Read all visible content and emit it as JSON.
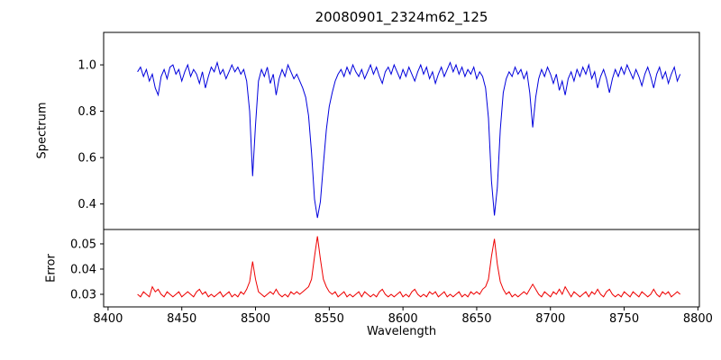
{
  "chart_data": {
    "type": "line",
    "title": "20080901_2324m62_125",
    "xlabel": "Wavelength",
    "grid": false,
    "legend": "none",
    "x_start": 8420,
    "x_step": 2,
    "n_points": 185,
    "xlim": [
      8397,
      8801
    ],
    "xticks": [
      "8400",
      "8450",
      "8500",
      "8550",
      "8600",
      "8650",
      "8700",
      "8750",
      "8800"
    ],
    "panels": [
      {
        "name": "spectrum",
        "ylabel": "Spectrum",
        "color": "#0000dd",
        "ylim": [
          0.29,
          1.14
        ],
        "yticks": [
          "0.4",
          "0.6",
          "0.8",
          "1.0"
        ],
        "absorption_line_centers": [
          8498,
          8542,
          8662
        ],
        "values": [
          0.97,
          0.99,
          0.95,
          0.98,
          0.93,
          0.96,
          0.9,
          0.87,
          0.95,
          0.98,
          0.94,
          0.99,
          1.0,
          0.96,
          0.98,
          0.93,
          0.97,
          1.0,
          0.95,
          0.98,
          0.96,
          0.92,
          0.97,
          0.9,
          0.95,
          0.99,
          0.97,
          1.01,
          0.96,
          0.98,
          0.94,
          0.97,
          1.0,
          0.97,
          0.99,
          0.96,
          0.98,
          0.93,
          0.8,
          0.52,
          0.74,
          0.93,
          0.98,
          0.95,
          0.99,
          0.92,
          0.96,
          0.87,
          0.94,
          0.98,
          0.95,
          1.0,
          0.97,
          0.94,
          0.96,
          0.93,
          0.9,
          0.86,
          0.78,
          0.62,
          0.42,
          0.34,
          0.41,
          0.57,
          0.72,
          0.82,
          0.88,
          0.93,
          0.96,
          0.98,
          0.95,
          0.99,
          0.96,
          1.0,
          0.97,
          0.95,
          0.98,
          0.94,
          0.97,
          1.0,
          0.96,
          0.99,
          0.95,
          0.92,
          0.97,
          0.99,
          0.96,
          1.0,
          0.97,
          0.94,
          0.98,
          0.95,
          0.99,
          0.96,
          0.93,
          0.97,
          1.0,
          0.96,
          0.99,
          0.94,
          0.97,
          0.92,
          0.96,
          0.99,
          0.95,
          0.98,
          1.01,
          0.97,
          1.0,
          0.96,
          0.99,
          0.95,
          0.98,
          0.96,
          0.99,
          0.94,
          0.97,
          0.95,
          0.9,
          0.77,
          0.5,
          0.35,
          0.47,
          0.72,
          0.88,
          0.94,
          0.97,
          0.95,
          0.99,
          0.96,
          0.98,
          0.94,
          0.97,
          0.88,
          0.73,
          0.86,
          0.94,
          0.98,
          0.95,
          0.99,
          0.96,
          0.92,
          0.96,
          0.89,
          0.93,
          0.87,
          0.94,
          0.97,
          0.93,
          0.98,
          0.95,
          0.99,
          0.96,
          1.0,
          0.94,
          0.97,
          0.9,
          0.95,
          0.98,
          0.94,
          0.88,
          0.94,
          0.98,
          0.95,
          0.99,
          0.96,
          1.0,
          0.97,
          0.94,
          0.98,
          0.95,
          0.91,
          0.96,
          0.99,
          0.95,
          0.9,
          0.96,
          0.99,
          0.94,
          0.97,
          0.92,
          0.96,
          0.99,
          0.93,
          0.96
        ]
      },
      {
        "name": "error",
        "ylabel": "Error",
        "color": "#ee0000",
        "ylim": [
          0.025,
          0.0557
        ],
        "yticks": [
          "0.03",
          "0.04",
          "0.05"
        ],
        "values": [
          0.03,
          0.029,
          0.031,
          0.03,
          0.029,
          0.033,
          0.031,
          0.032,
          0.03,
          0.029,
          0.031,
          0.03,
          0.029,
          0.03,
          0.031,
          0.029,
          0.03,
          0.031,
          0.03,
          0.029,
          0.031,
          0.032,
          0.03,
          0.031,
          0.029,
          0.03,
          0.029,
          0.03,
          0.031,
          0.029,
          0.03,
          0.031,
          0.029,
          0.03,
          0.029,
          0.031,
          0.03,
          0.032,
          0.035,
          0.043,
          0.036,
          0.031,
          0.03,
          0.029,
          0.03,
          0.031,
          0.03,
          0.032,
          0.03,
          0.029,
          0.03,
          0.029,
          0.031,
          0.03,
          0.031,
          0.03,
          0.031,
          0.032,
          0.033,
          0.036,
          0.045,
          0.053,
          0.044,
          0.036,
          0.033,
          0.031,
          0.03,
          0.031,
          0.029,
          0.03,
          0.031,
          0.029,
          0.03,
          0.029,
          0.03,
          0.031,
          0.029,
          0.031,
          0.03,
          0.029,
          0.03,
          0.029,
          0.031,
          0.032,
          0.03,
          0.029,
          0.03,
          0.029,
          0.03,
          0.031,
          0.029,
          0.03,
          0.029,
          0.031,
          0.032,
          0.03,
          0.029,
          0.03,
          0.029,
          0.031,
          0.03,
          0.031,
          0.029,
          0.03,
          0.031,
          0.029,
          0.03,
          0.029,
          0.03,
          0.031,
          0.029,
          0.03,
          0.029,
          0.031,
          0.03,
          0.031,
          0.03,
          0.032,
          0.033,
          0.036,
          0.045,
          0.052,
          0.042,
          0.035,
          0.032,
          0.03,
          0.031,
          0.029,
          0.03,
          0.029,
          0.03,
          0.031,
          0.03,
          0.032,
          0.034,
          0.032,
          0.03,
          0.029,
          0.031,
          0.03,
          0.029,
          0.031,
          0.03,
          0.032,
          0.03,
          0.033,
          0.031,
          0.029,
          0.031,
          0.03,
          0.029,
          0.03,
          0.031,
          0.029,
          0.031,
          0.03,
          0.032,
          0.03,
          0.029,
          0.031,
          0.032,
          0.03,
          0.029,
          0.03,
          0.029,
          0.031,
          0.03,
          0.029,
          0.031,
          0.03,
          0.029,
          0.031,
          0.03,
          0.029,
          0.03,
          0.032,
          0.03,
          0.029,
          0.031,
          0.03,
          0.031,
          0.029,
          0.03,
          0.031,
          0.03
        ]
      }
    ]
  }
}
